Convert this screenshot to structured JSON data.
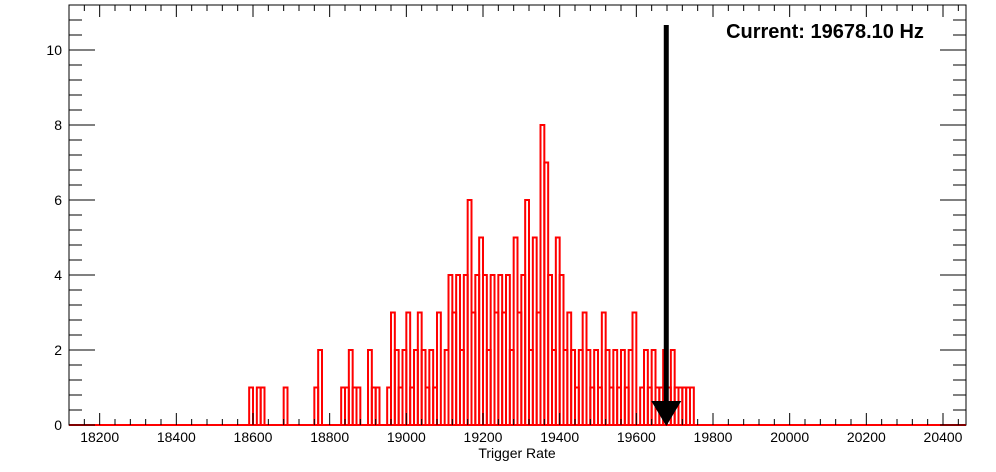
{
  "chart_data": {
    "type": "histogram",
    "xlabel": "Trigger Rate",
    "ylabel": "",
    "title": "",
    "xlim": [
      18120,
      20460
    ],
    "ylim": [
      0,
      11.2
    ],
    "x_ticks": [
      18200,
      18400,
      18600,
      18800,
      19000,
      19200,
      19400,
      19600,
      19800,
      20000,
      20200,
      20400
    ],
    "y_ticks": [
      0,
      2,
      4,
      6,
      8,
      10
    ],
    "grid": false,
    "legend": "none",
    "bin_width": 10,
    "line_color": "#ff0000",
    "bins_x": [
      18590,
      18610,
      18620,
      18680,
      18760,
      18770,
      18830,
      18840,
      18850,
      18860,
      18870,
      18900,
      18910,
      18920,
      18950,
      18960,
      18970,
      18980,
      18990,
      19000,
      19010,
      19020,
      19030,
      19040,
      19050,
      19060,
      19070,
      19080,
      19100,
      19110,
      19120,
      19130,
      19140,
      19150,
      19160,
      19170,
      19180,
      19190,
      19200,
      19210,
      19220,
      19230,
      19240,
      19250,
      19260,
      19270,
      19280,
      19290,
      19300,
      19310,
      19320,
      19330,
      19340,
      19350,
      19360,
      19370,
      19380,
      19390,
      19400,
      19410,
      19420,
      19430,
      19440,
      19450,
      19460,
      19470,
      19480,
      19490,
      19500,
      19510,
      19520,
      19530,
      19540,
      19550,
      19560,
      19570,
      19580,
      19590,
      19610,
      19620,
      19630,
      19640,
      19650,
      19660,
      19670,
      19680,
      19690,
      19700,
      19710,
      19720,
      19730,
      19740
    ],
    "bins_y": [
      1,
      1,
      1,
      1,
      1,
      2,
      1,
      1,
      2,
      1,
      1,
      2,
      1,
      1,
      1,
      3,
      2,
      1,
      2,
      3,
      1,
      2,
      3,
      2,
      1,
      2,
      1,
      3,
      2,
      4,
      3,
      4,
      2,
      4,
      6,
      3,
      4,
      5,
      4,
      2,
      4,
      3,
      4,
      3,
      4,
      2,
      5,
      3,
      4,
      6,
      2,
      5,
      3,
      8,
      7,
      4,
      2,
      5,
      4,
      2,
      3,
      2,
      1,
      2,
      3,
      2,
      1,
      2,
      1,
      3,
      2,
      1,
      2,
      1,
      2,
      1,
      2,
      3,
      1,
      2,
      1,
      2,
      1,
      1,
      2,
      1,
      2,
      1,
      1,
      1,
      1,
      1
    ],
    "marker": {
      "x": 19678.1,
      "label": "Current: 19678.10 Hz",
      "color": "#000000"
    }
  }
}
